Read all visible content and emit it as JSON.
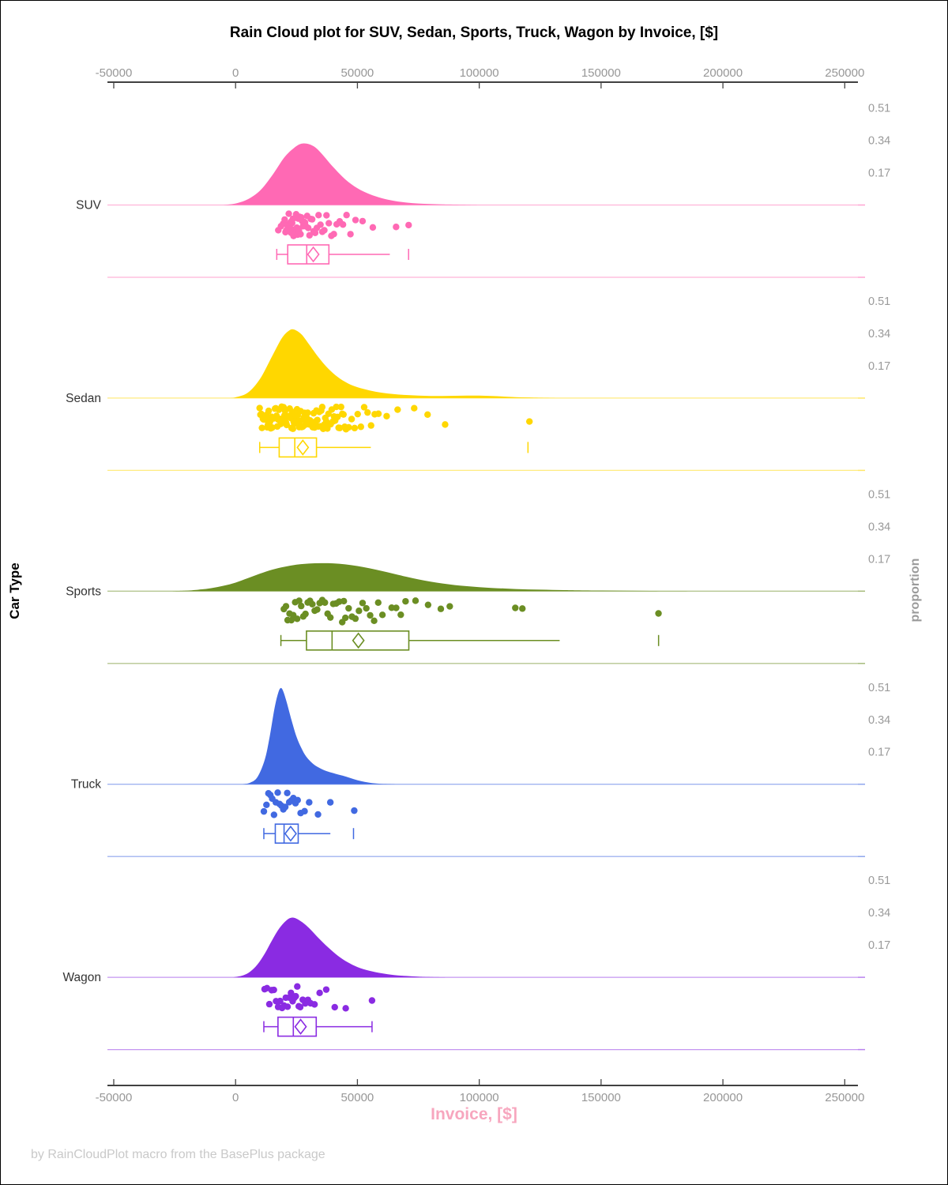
{
  "title": "Rain Cloud plot for SUV, Sedan, Sports, Truck, Wagon by Invoice, [$]",
  "footer": "by RainCloudPlot macro from the BasePlus package",
  "axes": {
    "x": {
      "label": "Invoice, [$]",
      "label_color": "#f7a6be",
      "tick_values": [
        -50000,
        0,
        50000,
        100000,
        150000,
        200000,
        250000
      ],
      "tick_labels": [
        "-50000",
        "0",
        "50000",
        "100000",
        "150000",
        "200000",
        "250000"
      ],
      "tick_label_color": "#979797",
      "axis_line_color": "#000000"
    },
    "y": {
      "label": "Car Type",
      "categories": [
        "SUV",
        "Sedan",
        "Sports",
        "Truck",
        "Wagon"
      ]
    },
    "right": {
      "label": "proportion",
      "tick_labels": [
        "0.51",
        "0.34",
        "0.17"
      ],
      "tick_values": [
        0.51,
        0.34,
        0.17
      ],
      "tick_label_color": "#9a9a9a"
    }
  },
  "chart_data": {
    "type": "raincloud",
    "x_field": "Invoice, [$]",
    "group_field": "Car Type",
    "x_range": [
      -52000,
      256000
    ],
    "proportion_ticks": [
      0.51,
      0.34,
      0.17
    ],
    "groups": [
      {
        "name": "SUV",
        "color": "#FF69B4",
        "box": {
          "min": 16900,
          "q1": 21400,
          "median": 29200,
          "mean": 31900,
          "q3": 38300,
          "whisker_high": 63300,
          "far_outlier": 71000,
          "cap_high": false
        },
        "density": [
          [
            -5000,
            0
          ],
          [
            0,
            0.008
          ],
          [
            5000,
            0.03
          ],
          [
            10000,
            0.075
          ],
          [
            15000,
            0.155
          ],
          [
            20000,
            0.25
          ],
          [
            24000,
            0.3
          ],
          [
            27000,
            0.322
          ],
          [
            30000,
            0.32
          ],
          [
            33000,
            0.3
          ],
          [
            36000,
            0.26
          ],
          [
            40000,
            0.2
          ],
          [
            45000,
            0.135
          ],
          [
            50000,
            0.088
          ],
          [
            55000,
            0.057
          ],
          [
            60000,
            0.036
          ],
          [
            65000,
            0.022
          ],
          [
            70000,
            0.013
          ],
          [
            75000,
            0.008
          ],
          [
            80000,
            0.005
          ],
          [
            85000,
            0.003
          ],
          [
            90000,
            0.002
          ],
          [
            100000,
            0
          ]
        ],
        "points": [
          17525,
          18620,
          19510,
          20140,
          20490,
          20770,
          21100,
          21325,
          21595,
          21840,
          22040,
          22260,
          22508,
          22775,
          23010,
          23215,
          23550,
          23790,
          24075,
          24290,
          24535,
          24852,
          25160,
          25465,
          25672,
          26010,
          26305,
          26660,
          26985,
          27325,
          27640,
          28050,
          28485,
          28910,
          29375,
          29820,
          30340,
          30870,
          31430,
          32035,
          32660,
          33340,
          34060,
          34840,
          35590,
          36420,
          37310,
          38270,
          39310,
          40340,
          41480,
          42725,
          44070,
          45540,
          47150,
          49230,
          52120,
          56325,
          65870,
          71020
        ]
      },
      {
        "name": "Sedan",
        "color": "#FFD700",
        "box": {
          "min": 9900,
          "q1": 17900,
          "median": 24300,
          "mean": 27600,
          "q3": 33200,
          "whisker_high": 55500,
          "far_outlier": 120000,
          "cap_high": false
        },
        "density": [
          [
            -2000,
            0
          ],
          [
            0,
            0.004
          ],
          [
            5000,
            0.028
          ],
          [
            10000,
            0.1
          ],
          [
            15000,
            0.22
          ],
          [
            19000,
            0.315
          ],
          [
            22000,
            0.355
          ],
          [
            24000,
            0.36
          ],
          [
            27000,
            0.335
          ],
          [
            30000,
            0.285
          ],
          [
            34000,
            0.215
          ],
          [
            38000,
            0.155
          ],
          [
            42000,
            0.11
          ],
          [
            46000,
            0.078
          ],
          [
            50000,
            0.057
          ],
          [
            55000,
            0.04
          ],
          [
            60000,
            0.028
          ],
          [
            65000,
            0.021
          ],
          [
            70000,
            0.016
          ],
          [
            75000,
            0.013
          ],
          [
            80000,
            0.011
          ],
          [
            85000,
            0.011
          ],
          [
            90000,
            0.012
          ],
          [
            95000,
            0.013
          ],
          [
            100000,
            0.013
          ],
          [
            105000,
            0.011
          ],
          [
            110000,
            0.008
          ],
          [
            115000,
            0.005
          ],
          [
            120000,
            0.003
          ],
          [
            125000,
            0.0015
          ],
          [
            132000,
            0
          ]
        ],
        "points": [
          9875,
          10200,
          10575,
          10830,
          11215,
          11480,
          11790,
          12095,
          12380,
          12640,
          12955,
          13270,
          13580,
          13850,
          14120,
          14445,
          14730,
          15010,
          15320,
          15610,
          15885,
          16180,
          16490,
          16805,
          17120,
          17455,
          17790,
          18145,
          18520,
          18910,
          19300,
          19680,
          20060,
          20310,
          20535,
          20750,
          20980,
          21230,
          21470,
          21705,
          21950,
          22210,
          22480,
          22740,
          23000,
          23265,
          23530,
          23805,
          24080,
          24360,
          24645,
          24930,
          25220,
          25510,
          25800,
          26100,
          26405,
          26710,
          27020,
          27330,
          27645,
          27960,
          28280,
          28600,
          28930,
          29260,
          29590,
          29925,
          30265,
          30610,
          30960,
          31315,
          31675,
          32040,
          32410,
          32785,
          33165,
          33550,
          33940,
          34335,
          34735,
          35140,
          35550,
          35965,
          36385,
          36810,
          37240,
          37675,
          38115,
          38560,
          39010,
          39465,
          39925,
          40390,
          40860,
          41335,
          41815,
          42300,
          42790,
          43285,
          43785,
          44290,
          44800,
          45315,
          46450,
          47630,
          48850,
          50115,
          51420,
          52770,
          54165,
          55605,
          57090,
          58620,
          62000,
          66500,
          73300,
          78800,
          86000,
          120600
        ]
      },
      {
        "name": "Sports",
        "color": "#6B8E23",
        "box": {
          "min": 18600,
          "q1": 29100,
          "median": 39600,
          "mean": 50400,
          "q3": 71100,
          "whisker_high": 133000,
          "far_outlier": 173600,
          "cap_high": false
        },
        "density": [
          [
            -28000,
            0
          ],
          [
            -20000,
            0.003
          ],
          [
            -15000,
            0.008
          ],
          [
            -10000,
            0.016
          ],
          [
            -5000,
            0.028
          ],
          [
            0,
            0.045
          ],
          [
            5000,
            0.068
          ],
          [
            10000,
            0.092
          ],
          [
            15000,
            0.113
          ],
          [
            20000,
            0.128
          ],
          [
            25000,
            0.139
          ],
          [
            30000,
            0.145
          ],
          [
            35000,
            0.147
          ],
          [
            40000,
            0.146
          ],
          [
            45000,
            0.141
          ],
          [
            50000,
            0.132
          ],
          [
            55000,
            0.12
          ],
          [
            60000,
            0.106
          ],
          [
            65000,
            0.091
          ],
          [
            70000,
            0.076
          ],
          [
            75000,
            0.062
          ],
          [
            80000,
            0.05
          ],
          [
            85000,
            0.04
          ],
          [
            90000,
            0.032
          ],
          [
            95000,
            0.026
          ],
          [
            100000,
            0.021
          ],
          [
            105000,
            0.017
          ],
          [
            110000,
            0.014
          ],
          [
            115000,
            0.011
          ],
          [
            120000,
            0.009
          ],
          [
            125000,
            0.008
          ],
          [
            130000,
            0.0065
          ],
          [
            135000,
            0.0055
          ],
          [
            140000,
            0.0045
          ],
          [
            150000,
            0.0032
          ],
          [
            160000,
            0.0022
          ],
          [
            170000,
            0.0013
          ],
          [
            180000,
            0.0006
          ],
          [
            192000,
            0
          ]
        ],
        "points": [
          19820,
          20690,
          21360,
          22150,
          22890,
          23680,
          24450,
          25270,
          26080,
          26930,
          27790,
          28680,
          29600,
          30540,
          31500,
          32480,
          33490,
          34520,
          35580,
          36660,
          37770,
          38910,
          40080,
          41280,
          42510,
          43770,
          44420,
          45070,
          46400,
          47770,
          49180,
          50630,
          52120,
          53650,
          55230,
          56860,
          58540,
          60270,
          64060,
          65900,
          67800,
          69760,
          73850,
          79000,
          84230,
          87900,
          114800,
          117700,
          173560
        ]
      },
      {
        "name": "Truck",
        "color": "#4169E1",
        "box": {
          "min": 11600,
          "q1": 16300,
          "median": 19900,
          "mean": 22600,
          "q3": 25700,
          "whisker_high": 38900,
          "far_outlier": 48400,
          "cap_high": false
        },
        "density": [
          [
            3000,
            0
          ],
          [
            6000,
            0.008
          ],
          [
            9000,
            0.038
          ],
          [
            12000,
            0.13
          ],
          [
            14000,
            0.25
          ],
          [
            16000,
            0.4
          ],
          [
            17500,
            0.48
          ],
          [
            18500,
            0.505
          ],
          [
            19500,
            0.49
          ],
          [
            21000,
            0.43
          ],
          [
            23000,
            0.335
          ],
          [
            25000,
            0.25
          ],
          [
            27000,
            0.19
          ],
          [
            29000,
            0.145
          ],
          [
            32000,
            0.105
          ],
          [
            35000,
            0.082
          ],
          [
            38000,
            0.066
          ],
          [
            41000,
            0.055
          ],
          [
            44000,
            0.045
          ],
          [
            47000,
            0.033
          ],
          [
            50000,
            0.021
          ],
          [
            53000,
            0.012
          ],
          [
            56000,
            0.006
          ],
          [
            60000,
            0.002
          ],
          [
            66000,
            0
          ]
        ],
        "points": [
          11615,
          12676,
          13480,
          14260,
          15035,
          15770,
          16530,
          17290,
          18050,
          18820,
          19600,
          20390,
          21200,
          22020,
          22860,
          23715,
          24590,
          25480,
          26700,
          28320,
          30200,
          33830,
          38890,
          48700
        ]
      },
      {
        "name": "Wagon",
        "color": "#8A2BE2",
        "box": {
          "min": 11600,
          "q1": 17400,
          "median": 23700,
          "mean": 26700,
          "q3": 33100,
          "whisker_high": 56000,
          "far_outlier": null,
          "cap_high": true
        },
        "density": [
          [
            -1000,
            0
          ],
          [
            3000,
            0.01
          ],
          [
            6000,
            0.03
          ],
          [
            9000,
            0.068
          ],
          [
            12000,
            0.125
          ],
          [
            15000,
            0.195
          ],
          [
            18000,
            0.258
          ],
          [
            21000,
            0.3
          ],
          [
            23000,
            0.313
          ],
          [
            25000,
            0.308
          ],
          [
            28000,
            0.283
          ],
          [
            31000,
            0.248
          ],
          [
            34000,
            0.207
          ],
          [
            38000,
            0.157
          ],
          [
            42000,
            0.113
          ],
          [
            46000,
            0.079
          ],
          [
            50000,
            0.054
          ],
          [
            55000,
            0.034
          ],
          [
            60000,
            0.021
          ],
          [
            65000,
            0.012
          ],
          [
            70000,
            0.007
          ],
          [
            75000,
            0.0035
          ],
          [
            80000,
            0.0015
          ],
          [
            87000,
            0
          ]
        ],
        "points": [
          11905,
          12900,
          13870,
          14810,
          15720,
          16600,
          17450,
          18280,
          19080,
          19860,
          20610,
          21340,
          22050,
          22740,
          23410,
          24060,
          24700,
          25320,
          25930,
          26530,
          27560,
          28610,
          29690,
          30800,
          32400,
          34500,
          37200,
          40700,
          45200,
          55990
        ]
      }
    ]
  }
}
